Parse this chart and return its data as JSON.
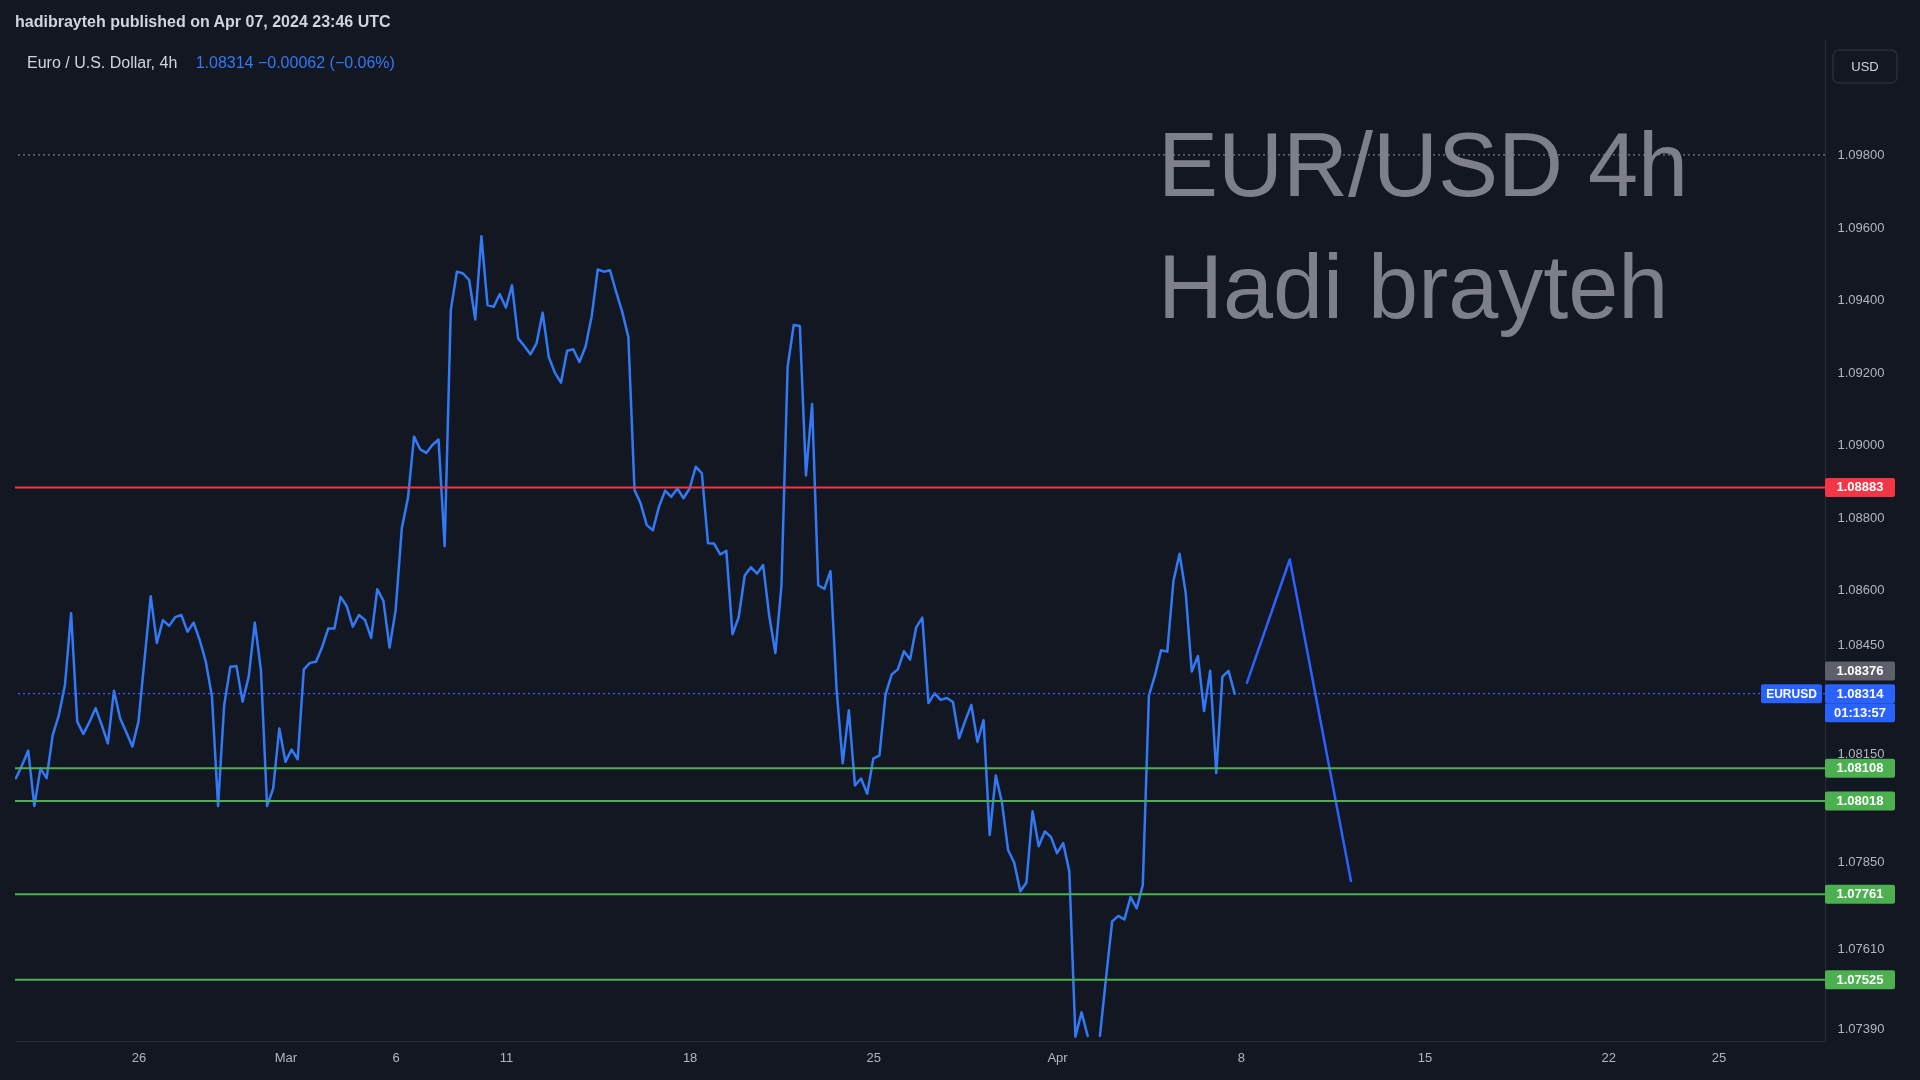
{
  "chart_data": {
    "type": "line",
    "title": "EUR/USD 4h",
    "subtitle": "Hadi brayteh",
    "categories": [
      null,
      null,
      null,
      null,
      null,
      null,
      null,
      null,
      null,
      null,
      null,
      null,
      null,
      null,
      null,
      null,
      null,
      null,
      null,
      null,
      "26",
      null,
      null,
      null,
      null,
      null,
      null,
      null,
      null,
      null,
      null,
      null,
      null,
      null,
      null,
      null,
      null,
      null,
      null,
      null,
      null,
      null,
      null,
      null,
      "Mar",
      null,
      null,
      null,
      null,
      null,
      null,
      null,
      null,
      null,
      null,
      null,
      null,
      null,
      null,
      null,
      null,
      null,
      "6",
      null,
      null,
      null,
      null,
      null,
      null,
      null,
      null,
      null,
      null,
      null,
      null,
      null,
      null,
      null,
      null,
      null,
      "11",
      null,
      null,
      null,
      null,
      null,
      null,
      null,
      null,
      null,
      null,
      null,
      null,
      null,
      null,
      null,
      null,
      null,
      null,
      null,
      null,
      null,
      null,
      null,
      null,
      null,
      null,
      null,
      null,
      null,
      "18",
      null,
      null,
      null,
      null,
      null,
      null,
      null,
      null,
      null,
      null,
      null,
      null,
      null,
      null,
      null,
      null,
      null,
      null,
      null,
      null,
      null,
      null,
      null,
      null,
      null,
      null,
      null,
      null,
      null,
      "25",
      null,
      null,
      null,
      null,
      null,
      null,
      null,
      null,
      null,
      null,
      null,
      null,
      null,
      null,
      null,
      null,
      null,
      null,
      null,
      null,
      null,
      null,
      null,
      null,
      null,
      null,
      null,
      null,
      null,
      "Apr",
      null,
      null,
      null,
      null,
      null,
      null,
      null,
      null,
      null,
      null,
      null,
      null,
      null,
      null,
      null,
      null,
      null,
      null,
      null,
      null,
      null,
      null,
      null,
      null,
      null,
      null,
      null,
      null,
      null,
      "8",
      null,
      null,
      null,
      null,
      null,
      null,
      null,
      null,
      null,
      null,
      null,
      null,
      null,
      null,
      null,
      null,
      null,
      null,
      null,
      null,
      null,
      null,
      null,
      null,
      null,
      null,
      null,
      null,
      null,
      "15",
      null,
      null,
      null,
      null,
      null,
      null,
      null,
      null,
      null,
      null,
      null,
      null,
      null,
      null,
      null,
      null,
      null,
      null,
      null,
      null,
      null,
      null,
      null,
      null,
      null,
      null,
      null,
      null,
      null,
      "22",
      null,
      null,
      null,
      null,
      null,
      null,
      null,
      null,
      null,
      null,
      null,
      null,
      null,
      null,
      null,
      null,
      null,
      "25",
      null,
      null,
      null,
      null,
      null,
      null,
      null,
      null,
      null,
      null,
      null,
      null,
      null,
      null,
      null,
      null,
      null
    ],
    "series": [
      {
        "color": "#3179f5",
        "values": [
          1.08081,
          1.08117,
          1.08157,
          1.08004,
          1.08108,
          1.08081,
          1.082,
          1.08255,
          1.08338,
          1.08536,
          1.08237,
          1.08203,
          1.08236,
          1.08274,
          1.08228,
          1.08177,
          1.08322,
          1.08246,
          1.08208,
          1.08168,
          1.08237,
          1.0841,
          1.08583,
          1.08454,
          1.08517,
          1.08501,
          1.08525,
          1.08531,
          1.08485,
          1.0851,
          1.08462,
          1.08402,
          1.08306,
          1.08004,
          1.08283,
          1.08388,
          1.0839,
          1.08292,
          1.08361,
          1.0851,
          1.08379,
          1.08004,
          1.08053,
          1.08218,
          1.08126,
          1.0816,
          1.08133,
          1.08381,
          1.08399,
          1.08402,
          1.08443,
          1.08494,
          1.08494,
          1.08581,
          1.08556,
          1.08499,
          1.08531,
          1.08517,
          1.08468,
          1.08602,
          1.0857,
          1.08441,
          1.08545,
          1.0877,
          1.08853,
          1.09023,
          1.08988,
          1.08978,
          1.09,
          1.09015,
          1.08721,
          1.09372,
          1.09478,
          1.09473,
          1.09455,
          1.09346,
          1.09576,
          1.09386,
          1.09381,
          1.09416,
          1.09379,
          1.09441,
          1.09294,
          1.09273,
          1.0925,
          1.0928,
          1.09365,
          1.09243,
          1.09199,
          1.09172,
          1.0926,
          1.09264,
          1.09229,
          1.09271,
          1.09354,
          1.09484,
          1.09478,
          1.09482,
          1.09422,
          1.09367,
          1.09297,
          1.08876,
          1.08839,
          1.08779,
          1.08765,
          1.0883,
          1.08874,
          1.08857,
          1.0888,
          1.08853,
          1.0888,
          1.0894,
          1.08922,
          1.08729,
          1.08728,
          1.08698,
          1.08708,
          1.08478,
          1.08524,
          1.0864,
          1.08663,
          1.08645,
          1.08669,
          1.08529,
          1.08426,
          1.08613,
          1.09215,
          1.09331,
          1.09328,
          1.08916,
          1.09113,
          1.08613,
          1.08603,
          1.08652,
          1.08325,
          1.08122,
          1.08268,
          1.08061,
          1.0808,
          1.08038,
          1.08135,
          1.08144,
          1.08312,
          1.08367,
          1.08381,
          1.08431,
          1.08408,
          1.08497,
          1.08524,
          1.08288,
          1.08315,
          1.08297,
          1.08302,
          1.08291,
          1.08191,
          1.08239,
          1.08283,
          1.08181,
          1.08241,
          1.07924,
          1.08088,
          1.08014,
          1.07883,
          1.07848,
          1.07769,
          1.07793,
          1.0799,
          1.07893,
          1.07934,
          1.07919,
          1.07874,
          1.07902,
          1.07824,
          1.07368,
          1.07435,
          1.0737,
          null,
          1.0737,
          1.0753,
          1.07686,
          1.07701,
          1.07691,
          1.07753,
          1.07722,
          1.07786,
          1.08309,
          1.08365,
          1.08434,
          1.0843,
          1.08624,
          1.087,
          1.08593,
          1.08375,
          1.08418,
          1.08266,
          1.08377,
          1.08095,
          1.08361,
          1.08377,
          1.08314,
          null,
          null,
          null,
          null,
          null,
          null,
          null,
          null,
          null,
          null,
          null,
          null,
          null,
          null,
          null,
          null,
          null,
          null,
          null,
          null,
          null,
          null,
          null,
          null,
          null,
          null,
          null,
          null,
          null,
          null,
          null,
          null,
          null,
          null,
          null,
          null,
          null,
          null,
          null,
          null,
          null,
          null,
          null,
          null,
          null,
          null,
          null,
          null,
          null,
          null,
          null,
          null,
          null,
          null,
          null,
          null,
          null,
          null,
          null,
          null,
          null,
          null,
          null,
          null,
          null,
          null,
          null,
          null,
          null,
          null,
          null,
          null,
          null,
          null,
          null,
          null,
          null,
          null,
          null,
          null,
          null,
          null,
          null,
          null,
          null,
          null,
          null,
          null,
          null,
          null,
          null,
          null,
          null,
          null,
          null,
          null
        ]
      },
      {
        "type": "line",
        "color": "#2962ff",
        "values": [
          null,
          null,
          null,
          null,
          null,
          null,
          null,
          null,
          null,
          null,
          null,
          null,
          null,
          null,
          null,
          null,
          null,
          null,
          null,
          null,
          null,
          null,
          null,
          null,
          null,
          null,
          null,
          null,
          null,
          null,
          null,
          null,
          null,
          null,
          null,
          null,
          null,
          null,
          null,
          null,
          null,
          null,
          null,
          null,
          null,
          null,
          null,
          null,
          null,
          null,
          null,
          null,
          null,
          null,
          null,
          null,
          null,
          null,
          null,
          null,
          null,
          null,
          null,
          null,
          null,
          null,
          null,
          null,
          null,
          null,
          null,
          null,
          null,
          null,
          null,
          null,
          null,
          null,
          null,
          null,
          null,
          null,
          null,
          null,
          null,
          null,
          null,
          null,
          null,
          null,
          null,
          null,
          null,
          null,
          null,
          null,
          null,
          null,
          null,
          null,
          null,
          null,
          null,
          null,
          null,
          null,
          null,
          null,
          null,
          null,
          null,
          null,
          null,
          null,
          null,
          null,
          null,
          null,
          null,
          null,
          null,
          null,
          null,
          null,
          null,
          null,
          null,
          null,
          null,
          null,
          null,
          null,
          null,
          null,
          null,
          null,
          null,
          null,
          null,
          null,
          null,
          null,
          null,
          null,
          null,
          null,
          null,
          null,
          null,
          null,
          null,
          null,
          null,
          null,
          null,
          null,
          null,
          null,
          null,
          null,
          null,
          null,
          null,
          null,
          null,
          null,
          null,
          null,
          null,
          null,
          null,
          null,
          null,
          null,
          null,
          null,
          null,
          null,
          null,
          null,
          null,
          null,
          null,
          null,
          null,
          null,
          null,
          null,
          null,
          null,
          null,
          null,
          null,
          null,
          null,
          null,
          null,
          null,
          null,
          null,
          null,
          1.08344,
          null,
          null,
          null,
          null,
          null,
          null,
          1.08684,
          null,
          null,
          null,
          null,
          null,
          null,
          null,
          null,
          null,
          1.07797,
          null,
          null,
          null,
          null,
          null,
          null,
          null,
          null,
          null,
          null,
          null,
          null,
          null,
          null,
          null,
          null,
          null,
          null,
          null,
          null,
          null,
          null,
          null,
          null,
          null,
          null,
          null,
          null,
          null,
          null,
          null,
          null,
          null,
          null,
          null,
          null,
          null,
          null,
          null,
          null,
          null,
          null,
          null,
          null,
          null,
          null,
          null,
          null,
          null,
          null,
          null,
          null,
          null,
          null,
          null,
          null,
          null,
          null,
          null,
          null,
          null,
          null,
          null,
          null,
          null,
          null,
          null,
          null,
          null,
          null,
          null,
          null,
          null,
          null,
          null,
          null,
          null
        ]
      }
    ],
    "ylim": [
      1.07356,
      1.10117
    ],
    "yticks": [
      {
        "value": 1.098,
        "label": "1.09800"
      },
      {
        "value": 1.096,
        "label": "1.09600"
      },
      {
        "value": 1.094,
        "label": "1.09400"
      },
      {
        "value": 1.092,
        "label": "1.09200"
      },
      {
        "value": 1.09,
        "label": "1.09000"
      },
      {
        "value": 1.088,
        "label": "1.08800"
      },
      {
        "value": 1.086,
        "label": "1.08600"
      },
      {
        "value": 1.0845,
        "label": "1.08450"
      },
      {
        "value": 1.0815,
        "label": "1.08150"
      },
      {
        "value": 1.0785,
        "label": "1.07850"
      },
      {
        "value": 1.0761,
        "label": "1.07610"
      },
      {
        "value": 1.0739,
        "label": "1.07390"
      }
    ],
    "ref_lines": [
      {
        "axis": "y",
        "value": 1.098,
        "color": "#787b86",
        "line_style": "dotted"
      },
      {
        "axis": "y",
        "value": 1.08883,
        "label": "1.08883",
        "color": "#f23645"
      },
      {
        "axis": "y",
        "value": 1.08314,
        "label": "1.08314",
        "color": "#2962ff",
        "line_style": "dotted"
      },
      {
        "axis": "y",
        "value": 1.08108,
        "label": "1.08108",
        "color": "#4caf50"
      },
      {
        "axis": "y",
        "value": 1.08018,
        "label": "1.08018",
        "color": "#4caf50"
      },
      {
        "axis": "y",
        "value": 1.07761,
        "label": "1.07761",
        "color": "#4caf50"
      },
      {
        "axis": "y",
        "value": 1.07525,
        "label": "1.07525",
        "color": "#4caf50"
      }
    ],
    "annotations": [
      "hadibrayteh published on Apr 07, 2024 23:46 UTC",
      "Euro / U.S. Dollar, 4h",
      "1.08314 −0.00062 (−0.06%)",
      "USD",
      "EURUSD",
      "01:13:57",
      "1.08376"
    ],
    "grid": false
  }
}
